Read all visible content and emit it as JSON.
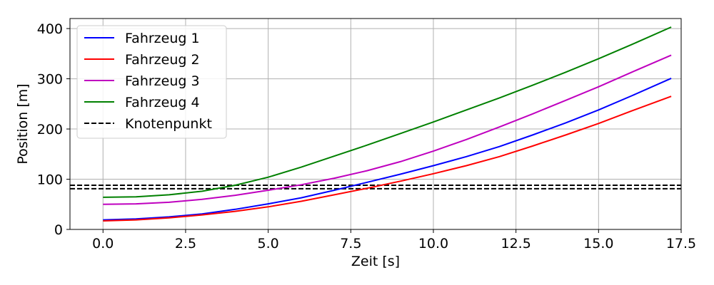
{
  "chart_data": {
    "type": "line",
    "title": "",
    "xlabel": "Zeit [s]",
    "ylabel": "Position [m]",
    "xlim": [
      -1,
      17.5
    ],
    "ylim": [
      0,
      420
    ],
    "xticks": [
      0.0,
      2.5,
      5.0,
      7.5,
      10.0,
      12.5,
      15.0,
      17.5
    ],
    "xtick_labels": [
      "0.0",
      "2.5",
      "5.0",
      "7.5",
      "10.0",
      "12.5",
      "15.0",
      "17.5"
    ],
    "yticks": [
      0,
      100,
      200,
      300,
      400
    ],
    "ytick_labels": [
      "0",
      "100",
      "200",
      "300",
      "400"
    ],
    "grid": true,
    "legend_position": "top-left",
    "series": [
      {
        "name": "Fahrzeug 1",
        "color": "#0000ff",
        "style": "solid",
        "x": [
          0,
          1,
          2,
          3,
          4,
          5,
          6,
          7,
          8,
          9,
          10,
          11,
          12,
          13,
          14,
          15,
          16,
          17.2
        ],
        "y": [
          19,
          21,
          25,
          31,
          40,
          51,
          63,
          78,
          94,
          110,
          127,
          145,
          165,
          188,
          212,
          238,
          266,
          301
        ]
      },
      {
        "name": "Fahrzeug 2",
        "color": "#ff0000",
        "style": "solid",
        "x": [
          0,
          1,
          2,
          3,
          4,
          5,
          6,
          7,
          8,
          9,
          10,
          11,
          12,
          13,
          14,
          15,
          16,
          17.2
        ],
        "y": [
          17,
          19,
          23,
          29,
          36,
          45,
          56,
          69,
          82,
          96,
          111,
          127,
          145,
          166,
          188,
          211,
          236,
          265
        ]
      },
      {
        "name": "Fahrzeug 3",
        "color": "#bf00bf",
        "style": "solid",
        "x": [
          0,
          1,
          2,
          3,
          4,
          5,
          6,
          7,
          8,
          9,
          10,
          11,
          12,
          13,
          14,
          15,
          16,
          17.2
        ],
        "y": [
          50,
          51,
          54,
          60,
          68,
          78,
          89,
          102,
          117,
          135,
          156,
          179,
          204,
          230,
          257,
          284,
          313,
          347
        ]
      },
      {
        "name": "Fahrzeug 4",
        "color": "#008000",
        "style": "solid",
        "x": [
          0,
          1,
          2,
          3,
          4,
          5,
          6,
          7,
          8,
          9,
          10,
          11,
          12,
          13,
          14,
          15,
          16,
          17.2
        ],
        "y": [
          64,
          65,
          69,
          76,
          88,
          104,
          124,
          146,
          168,
          191,
          214,
          238,
          262,
          287,
          313,
          340,
          368,
          403
        ]
      }
    ],
    "reference_lines": [
      {
        "name": "Knotenpunkt",
        "color": "#000000",
        "style": "dashed",
        "y": 88,
        "x_range": [
          -1,
          17.5
        ]
      },
      {
        "name": "",
        "color": "#000000",
        "style": "dashed",
        "y": 81,
        "x_range": [
          -1,
          17.5
        ]
      }
    ],
    "legend": [
      {
        "label": "Fahrzeug 1",
        "color": "#0000ff",
        "style": "solid"
      },
      {
        "label": "Fahrzeug 2",
        "color": "#ff0000",
        "style": "solid"
      },
      {
        "label": "Fahrzeug 3",
        "color": "#bf00bf",
        "style": "solid"
      },
      {
        "label": "Fahrzeug 4",
        "color": "#008000",
        "style": "solid"
      },
      {
        "label": "Knotenpunkt",
        "color": "#000000",
        "style": "dashed"
      }
    ]
  }
}
